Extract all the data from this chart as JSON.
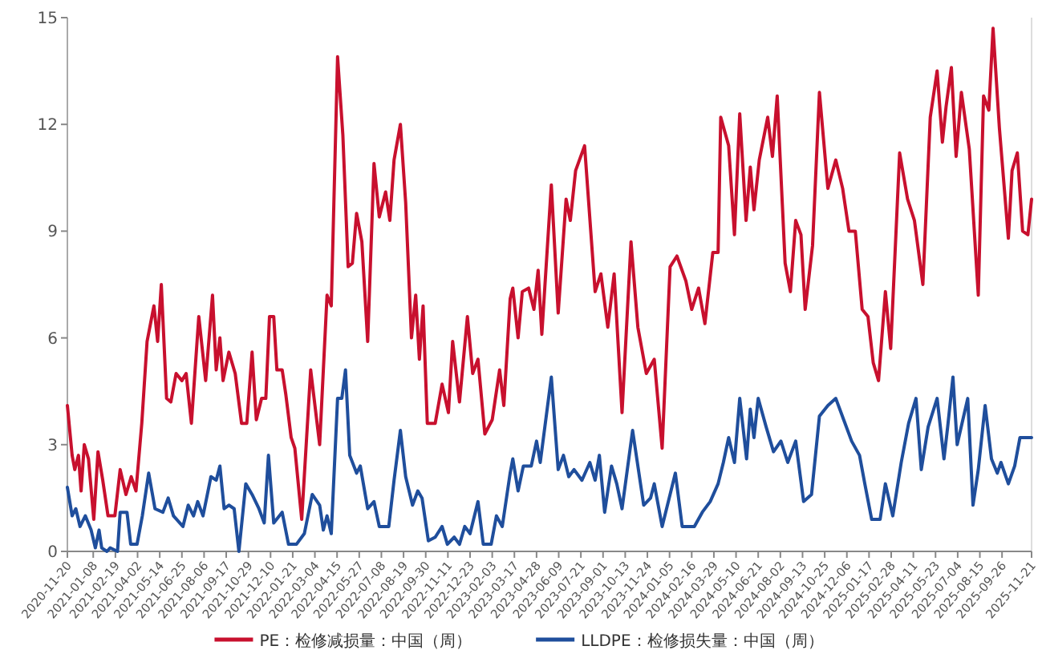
{
  "chart_data": {
    "type": "line",
    "legend": "bottom",
    "marker": "none",
    "line_style": "solid",
    "xlim": [
      "2020-11-20",
      "2025-11-21"
    ],
    "xticks": [
      "2020-11-20",
      "2021-01-08",
      "2021-02-19",
      "2021-04-02",
      "2021-05-14",
      "2021-06-25",
      "2021-08-06",
      "2021-09-17",
      "2021-10-29",
      "2021-12-10",
      "2022-01-21",
      "2022-03-04",
      "2022-04-15",
      "2022-05-27",
      "2022-07-08",
      "2022-08-19",
      "2022-09-30",
      "2022-11-11",
      "2022-12-23",
      "2023-02-03",
      "2023-03-17",
      "2023-04-28",
      "2023-06-09",
      "2023-07-21",
      "2023-09-01",
      "2023-10-13",
      "2023-11-24",
      "2024-01-05",
      "2024-02-16",
      "2024-03-29",
      "2024-05-10",
      "2024-06-21",
      "2024-08-02",
      "2024-09-13",
      "2024-10-25",
      "2024-12-06",
      "2025-01-17",
      "2025-02-28",
      "2025-04-11",
      "2025-05-23",
      "2025-07-04",
      "2025-08-15",
      "2025-09-26",
      "2025-11-21"
    ],
    "ylim": [
      0,
      15
    ],
    "yticks": [
      0,
      3,
      6,
      9,
      12,
      15
    ],
    "series": [
      {
        "name": "PE：检修减损量：中国（周）",
        "color": "#c8102e",
        "x": [
          "2020-11-20",
          "2020-11-29",
          "2020-12-04",
          "2020-12-11",
          "2020-12-16",
          "2020-12-22",
          "2020-12-30",
          "2021-01-09",
          "2021-01-17",
          "2021-01-26",
          "2021-02-05",
          "2021-02-18",
          "2021-02-28",
          "2021-03-11",
          "2021-03-21",
          "2021-03-30",
          "2021-04-10",
          "2021-04-20",
          "2021-05-03",
          "2021-05-10",
          "2021-05-17",
          "2021-05-27",
          "2021-06-04",
          "2021-06-14",
          "2021-06-25",
          "2021-07-03",
          "2021-07-13",
          "2021-07-27",
          "2021-08-09",
          "2021-08-22",
          "2021-08-29",
          "2021-09-05",
          "2021-09-11",
          "2021-09-22",
          "2021-10-04",
          "2021-10-16",
          "2021-10-26",
          "2021-11-05",
          "2021-11-13",
          "2021-11-23",
          "2021-12-01",
          "2021-12-08",
          "2021-12-16",
          "2021-12-22",
          "2022-01-01",
          "2022-01-08",
          "2022-01-18",
          "2022-01-25",
          "2022-02-07",
          "2022-02-24",
          "2022-03-13",
          "2022-03-27",
          "2022-04-04",
          "2022-04-16",
          "2022-04-26",
          "2022-05-06",
          "2022-05-14",
          "2022-05-22",
          "2022-06-01",
          "2022-06-12",
          "2022-06-24",
          "2022-07-04",
          "2022-07-16",
          "2022-07-24",
          "2022-08-01",
          "2022-08-13",
          "2022-08-23",
          "2022-09-03",
          "2022-09-11",
          "2022-09-18",
          "2022-09-25",
          "2022-10-03",
          "2022-10-18",
          "2022-10-31",
          "2022-11-12",
          "2022-11-20",
          "2022-12-03",
          "2022-12-18",
          "2022-12-28",
          "2023-01-07",
          "2023-01-20",
          "2023-02-03",
          "2023-02-17",
          "2023-02-25",
          "2023-03-09",
          "2023-03-14",
          "2023-03-24",
          "2023-04-01",
          "2023-04-13",
          "2023-04-23",
          "2023-05-01",
          "2023-05-08",
          "2023-05-26",
          "2023-06-08",
          "2023-06-23",
          "2023-07-01",
          "2023-07-11",
          "2023-07-28",
          "2023-08-17",
          "2023-08-28",
          "2023-09-10",
          "2023-09-22",
          "2023-10-07",
          "2023-10-24",
          "2023-11-06",
          "2023-11-22",
          "2023-12-07",
          "2023-12-22",
          "2024-01-06",
          "2024-01-19",
          "2024-02-05",
          "2024-02-16",
          "2024-02-29",
          "2024-03-12",
          "2024-03-27",
          "2024-04-06",
          "2024-04-11",
          "2024-04-26",
          "2024-05-07",
          "2024-05-17",
          "2024-05-29",
          "2024-06-06",
          "2024-06-13",
          "2024-06-23",
          "2024-07-09",
          "2024-07-18",
          "2024-07-27",
          "2024-08-11",
          "2024-08-21",
          "2024-08-31",
          "2024-09-10",
          "2024-09-18",
          "2024-10-02",
          "2024-10-15",
          "2024-10-31",
          "2024-11-15",
          "2024-11-28",
          "2024-12-10",
          "2024-12-22",
          "2025-01-04",
          "2025-01-15",
          "2025-01-25",
          "2025-02-04",
          "2025-02-17",
          "2025-02-27",
          "2025-03-16",
          "2025-03-31",
          "2025-04-13",
          "2025-04-29",
          "2025-05-13",
          "2025-05-26",
          "2025-06-05",
          "2025-06-12",
          "2025-06-22",
          "2025-07-01",
          "2025-07-11",
          "2025-07-26",
          "2025-08-12",
          "2025-08-22",
          "2025-09-01",
          "2025-09-09",
          "2025-09-21",
          "2025-10-08",
          "2025-10-15",
          "2025-10-25",
          "2025-11-04",
          "2025-11-14",
          "2025-11-21"
        ],
        "values": [
          4.1,
          2.7,
          2.3,
          2.7,
          1.7,
          3.0,
          2.6,
          0.9,
          2.8,
          2.0,
          1.0,
          1.0,
          2.3,
          1.6,
          2.1,
          1.7,
          3.6,
          5.9,
          6.9,
          5.9,
          7.5,
          4.3,
          4.2,
          5.0,
          4.8,
          5.0,
          3.6,
          6.6,
          4.8,
          7.2,
          5.1,
          6.0,
          4.8,
          5.6,
          5.0,
          3.6,
          3.6,
          5.6,
          3.7,
          4.3,
          4.3,
          6.6,
          6.6,
          5.1,
          5.1,
          4.4,
          3.2,
          2.9,
          0.9,
          5.1,
          3.0,
          7.2,
          6.9,
          13.9,
          11.7,
          8.0,
          8.1,
          9.5,
          8.7,
          5.9,
          10.9,
          9.4,
          10.1,
          9.3,
          11.0,
          12.0,
          9.8,
          6.0,
          7.2,
          5.4,
          6.9,
          3.6,
          3.6,
          4.7,
          3.9,
          5.9,
          4.2,
          6.6,
          5.0,
          5.4,
          3.3,
          3.7,
          5.1,
          4.1,
          7.1,
          7.4,
          6.0,
          7.3,
          7.4,
          6.8,
          7.9,
          6.1,
          10.3,
          6.7,
          9.9,
          9.3,
          10.7,
          11.4,
          7.3,
          7.8,
          6.3,
          7.8,
          3.9,
          8.7,
          6.3,
          5.0,
          5.4,
          2.9,
          8.0,
          8.3,
          7.6,
          6.8,
          7.4,
          6.4,
          8.4,
          8.4,
          12.2,
          11.4,
          8.9,
          12.3,
          9.3,
          10.8,
          9.6,
          11.0,
          12.2,
          11.1,
          12.8,
          8.1,
          7.3,
          9.3,
          8.9,
          6.8,
          8.6,
          12.9,
          10.2,
          11.0,
          10.2,
          9.0,
          9.0,
          6.8,
          6.6,
          5.3,
          4.8,
          7.3,
          5.7,
          11.2,
          9.9,
          9.3,
          7.5,
          12.2,
          13.5,
          11.5,
          12.5,
          13.6,
          11.1,
          12.9,
          11.3,
          7.2,
          12.8,
          12.4,
          14.7,
          11.9,
          8.8,
          10.7,
          11.2,
          9.0,
          8.9,
          9.9
        ]
      },
      {
        "name": "LLDPE：检修损失量：中国（周）",
        "color": "#1f4e9c",
        "x": [
          "2020-11-20",
          "2020-11-29",
          "2020-12-06",
          "2020-12-14",
          "2020-12-24",
          "2021-01-04",
          "2021-01-12",
          "2021-01-19",
          "2021-01-24",
          "2021-02-03",
          "2021-02-09",
          "2021-02-23",
          "2021-02-28",
          "2021-03-13",
          "2021-03-20",
          "2021-04-01",
          "2021-04-11",
          "2021-04-23",
          "2021-05-05",
          "2021-05-20",
          "2021-05-30",
          "2021-06-09",
          "2021-06-27",
          "2021-07-07",
          "2021-07-17",
          "2021-07-25",
          "2021-08-04",
          "2021-08-19",
          "2021-08-29",
          "2021-09-05",
          "2021-09-13",
          "2021-09-22",
          "2021-10-02",
          "2021-10-11",
          "2021-10-24",
          "2021-11-05",
          "2021-11-18",
          "2021-11-28",
          "2021-12-06",
          "2021-12-16",
          "2022-01-01",
          "2022-01-13",
          "2022-01-28",
          "2022-02-12",
          "2022-02-27",
          "2022-03-13",
          "2022-03-20",
          "2022-03-27",
          "2022-04-04",
          "2022-04-16",
          "2022-04-24",
          "2022-05-01",
          "2022-05-09",
          "2022-05-22",
          "2022-05-29",
          "2022-06-12",
          "2022-06-24",
          "2022-07-04",
          "2022-07-22",
          "2022-08-01",
          "2022-08-13",
          "2022-08-23",
          "2022-09-05",
          "2022-09-15",
          "2022-09-23",
          "2022-10-05",
          "2022-10-18",
          "2022-10-31",
          "2022-11-10",
          "2022-11-23",
          "2022-12-03",
          "2022-12-13",
          "2022-12-23",
          "2023-01-07",
          "2023-01-17",
          "2023-02-01",
          "2023-02-11",
          "2023-02-22",
          "2023-03-09",
          "2023-03-14",
          "2023-03-24",
          "2023-04-03",
          "2023-04-18",
          "2023-04-28",
          "2023-05-05",
          "2023-05-26",
          "2023-06-08",
          "2023-06-18",
          "2023-06-28",
          "2023-07-08",
          "2023-07-23",
          "2023-08-07",
          "2023-08-17",
          "2023-08-25",
          "2023-09-04",
          "2023-09-17",
          "2023-09-27",
          "2023-10-07",
          "2023-10-27",
          "2023-11-06",
          "2023-11-17",
          "2023-11-30",
          "2023-12-07",
          "2023-12-22",
          "2024-01-06",
          "2024-01-16",
          "2024-01-29",
          "2024-02-21",
          "2024-03-07",
          "2024-03-22",
          "2024-04-06",
          "2024-04-16",
          "2024-04-26",
          "2024-05-07",
          "2024-05-17",
          "2024-05-30",
          "2024-06-06",
          "2024-06-13",
          "2024-06-21",
          "2024-07-06",
          "2024-07-20",
          "2024-08-03",
          "2024-08-16",
          "2024-08-31",
          "2024-09-15",
          "2024-09-30",
          "2024-10-15",
          "2024-10-31",
          "2024-11-15",
          "2024-11-30",
          "2024-12-15",
          "2024-12-30",
          "2025-01-09",
          "2025-01-22",
          "2025-02-07",
          "2025-02-17",
          "2025-03-03",
          "2025-03-19",
          "2025-04-02",
          "2025-04-16",
          "2025-04-26",
          "2025-05-09",
          "2025-05-26",
          "2025-06-08",
          "2025-06-15",
          "2025-06-25",
          "2025-07-03",
          "2025-07-23",
          "2025-08-02",
          "2025-08-12",
          "2025-08-25",
          "2025-09-06",
          "2025-09-17",
          "2025-09-24",
          "2025-10-08",
          "2025-10-20",
          "2025-10-30",
          "2025-11-14",
          "2025-11-21"
        ],
        "values": [
          1.8,
          1.0,
          1.2,
          0.7,
          1.0,
          0.6,
          0.1,
          0.6,
          0.1,
          0,
          0.1,
          0,
          1.1,
          1.1,
          0.2,
          0.2,
          1.0,
          2.2,
          1.2,
          1.1,
          1.5,
          1.0,
          0.7,
          1.3,
          1.0,
          1.4,
          1.0,
          2.1,
          2.0,
          2.4,
          1.2,
          1.3,
          1.2,
          0,
          1.9,
          1.6,
          1.2,
          0.8,
          2.7,
          0.8,
          1.1,
          0.2,
          0.2,
          0.5,
          1.6,
          1.3,
          0.6,
          1.0,
          0.5,
          4.3,
          4.3,
          5.1,
          2.7,
          2.2,
          2.4,
          1.2,
          1.4,
          0.7,
          0.7,
          2.0,
          3.4,
          2.1,
          1.3,
          1.7,
          1.5,
          0.3,
          0.4,
          0.7,
          0.2,
          0.4,
          0.2,
          0.7,
          0.5,
          1.4,
          0.2,
          0.2,
          1.0,
          0.7,
          2.2,
          2.6,
          1.7,
          2.4,
          2.4,
          3.1,
          2.5,
          4.9,
          2.3,
          2.7,
          2.1,
          2.3,
          2.0,
          2.5,
          2.0,
          2.7,
          1.1,
          2.4,
          1.9,
          1.2,
          3.4,
          2.4,
          1.3,
          1.5,
          1.9,
          0.7,
          1.6,
          2.2,
          0.7,
          0.7,
          1.1,
          1.4,
          1.9,
          2.5,
          3.2,
          2.5,
          4.3,
          2.6,
          4.0,
          3.2,
          4.3,
          3.5,
          2.8,
          3.1,
          2.5,
          3.1,
          1.4,
          1.6,
          3.8,
          4.1,
          4.3,
          3.7,
          3.1,
          2.7,
          1.9,
          0.9,
          0.9,
          1.9,
          1.0,
          2.5,
          3.6,
          4.3,
          2.3,
          3.5,
          4.3,
          2.6,
          3.5,
          4.9,
          3.0,
          4.3,
          1.3,
          2.3,
          4.1,
          2.6,
          2.2,
          2.5,
          1.9,
          2.4,
          3.2,
          3.2,
          3.2
        ]
      }
    ]
  }
}
